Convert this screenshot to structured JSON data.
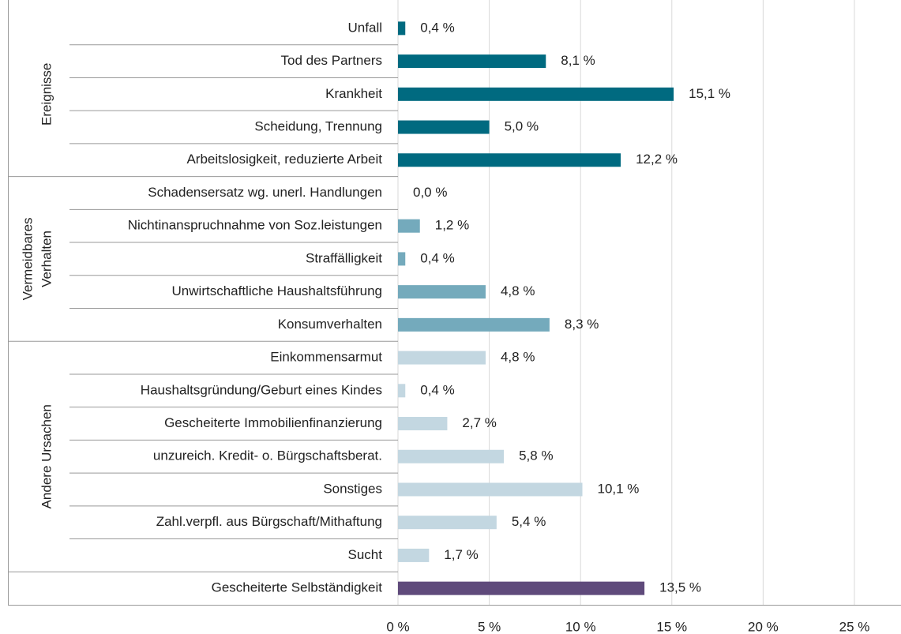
{
  "chart_data": {
    "type": "bar",
    "orientation": "horizontal",
    "groups": [
      {
        "name": [
          "Ereignisse"
        ],
        "color": "#006a80",
        "categories": [
          "Unfall",
          "Tod des Partners",
          "Krankheit",
          "Scheidung, Trennung",
          "Arbeitslosigkeit, reduzierte Arbeit"
        ],
        "values": [
          0.4,
          8.1,
          15.1,
          5.0,
          12.2
        ],
        "value_labels": [
          "0,4 %",
          "8,1 %",
          "15,1 %",
          "5,0 %",
          "12,2 %"
        ]
      },
      {
        "name": [
          "Vermeidbares",
          "Verhalten"
        ],
        "color": "#74aabc",
        "categories": [
          "Schadensersatz wg. unerl. Handlungen",
          "Nichtinanspruchnahme von Soz.leistungen",
          "Straffälligkeit",
          "Unwirtschaftliche Haushaltsführung",
          "Konsumverhalten"
        ],
        "values": [
          0.0,
          1.2,
          0.4,
          4.8,
          8.3
        ],
        "value_labels": [
          "0,0 %",
          "1,2 %",
          "0,4 %",
          "4,8 %",
          "8,3 %"
        ]
      },
      {
        "name": [
          "Andere Ursachen"
        ],
        "color": "#c3d7e1",
        "categories": [
          "Einkommensarmut",
          "Haushaltsgründung/Geburt eines Kindes",
          "Gescheiterte Immobilienfinanzierung",
          "unzureich. Kredit- o. Bürgschaftsberat.",
          "Sonstiges",
          "Zahl.verpfl. aus Bürgschaft/Mithaftung",
          "Sucht"
        ],
        "values": [
          4.8,
          0.4,
          2.7,
          5.8,
          10.1,
          5.4,
          1.7
        ],
        "value_labels": [
          "4,8 %",
          "0,4 %",
          "2,7 %",
          "5,8 %",
          "10,1 %",
          "5,4 %",
          "1,7 %"
        ]
      },
      {
        "color": "#5f4a7b",
        "categories": [
          "Gescheiterte Selbständigkeit"
        ],
        "values": [
          13.5
        ],
        "value_labels": [
          "13,5 %"
        ]
      }
    ],
    "xlim": [
      0,
      25
    ],
    "xticks": [
      {
        "value": 0,
        "label": "0 %"
      },
      {
        "value": 5,
        "label": "5 %"
      },
      {
        "value": 10,
        "label": "10 %"
      },
      {
        "value": 15,
        "label": "15 %"
      },
      {
        "value": 20,
        "label": "20 %"
      },
      {
        "value": 25,
        "label": "25 %"
      }
    ],
    "grid": true
  }
}
